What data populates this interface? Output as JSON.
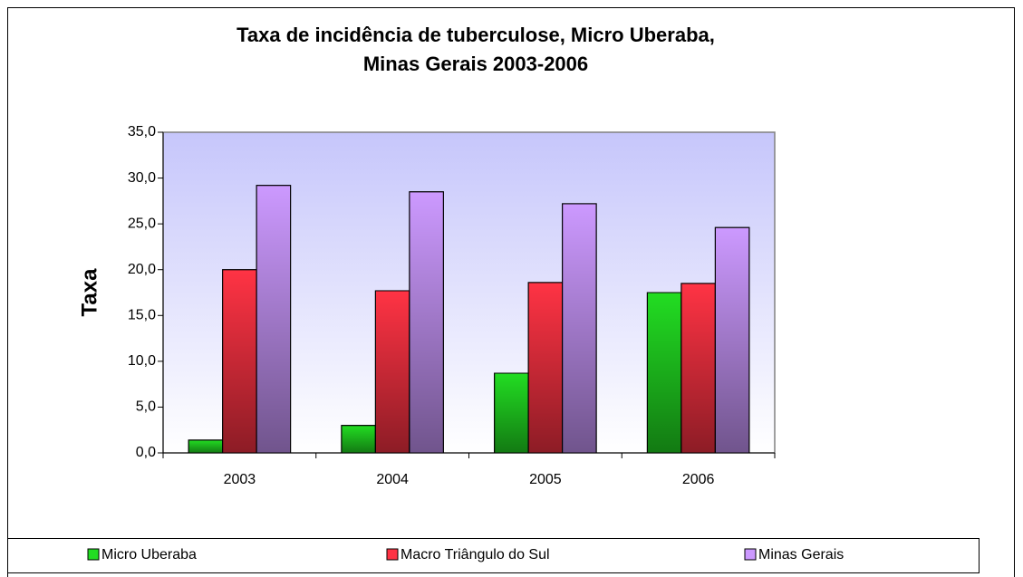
{
  "chart_data": {
    "type": "bar",
    "title": [
      "Taxa de incidência de tuberculose, Micro Uberaba,",
      "Minas Gerais 2003-2006"
    ],
    "y_label": "Taxa",
    "categories": [
      "2003",
      "2004",
      "2005",
      "2006"
    ],
    "series": [
      {
        "name": "Micro Uberaba",
        "color": "#22dd22",
        "values": [
          1.4,
          3.0,
          8.7,
          17.5
        ]
      },
      {
        "name": "Macro Triângulo do Sul",
        "color": "#ff3344",
        "values": [
          20.0,
          17.7,
          18.6,
          18.5
        ]
      },
      {
        "name": "Minas Gerais",
        "color": "#cc99ff",
        "values": [
          29.2,
          28.5,
          27.2,
          24.6
        ]
      }
    ],
    "ylim": [
      0,
      35
    ],
    "yticks": [
      {
        "value": 0,
        "label": "0,0"
      },
      {
        "value": 5,
        "label": "5,0"
      },
      {
        "value": 10,
        "label": "10,0"
      },
      {
        "value": 15,
        "label": "15,0"
      },
      {
        "value": 20,
        "label": "20,0"
      },
      {
        "value": 25,
        "label": "25,0"
      },
      {
        "value": 30,
        "label": "30,0"
      },
      {
        "value": 35,
        "label": "35,0"
      }
    ],
    "legend": "bottom"
  }
}
